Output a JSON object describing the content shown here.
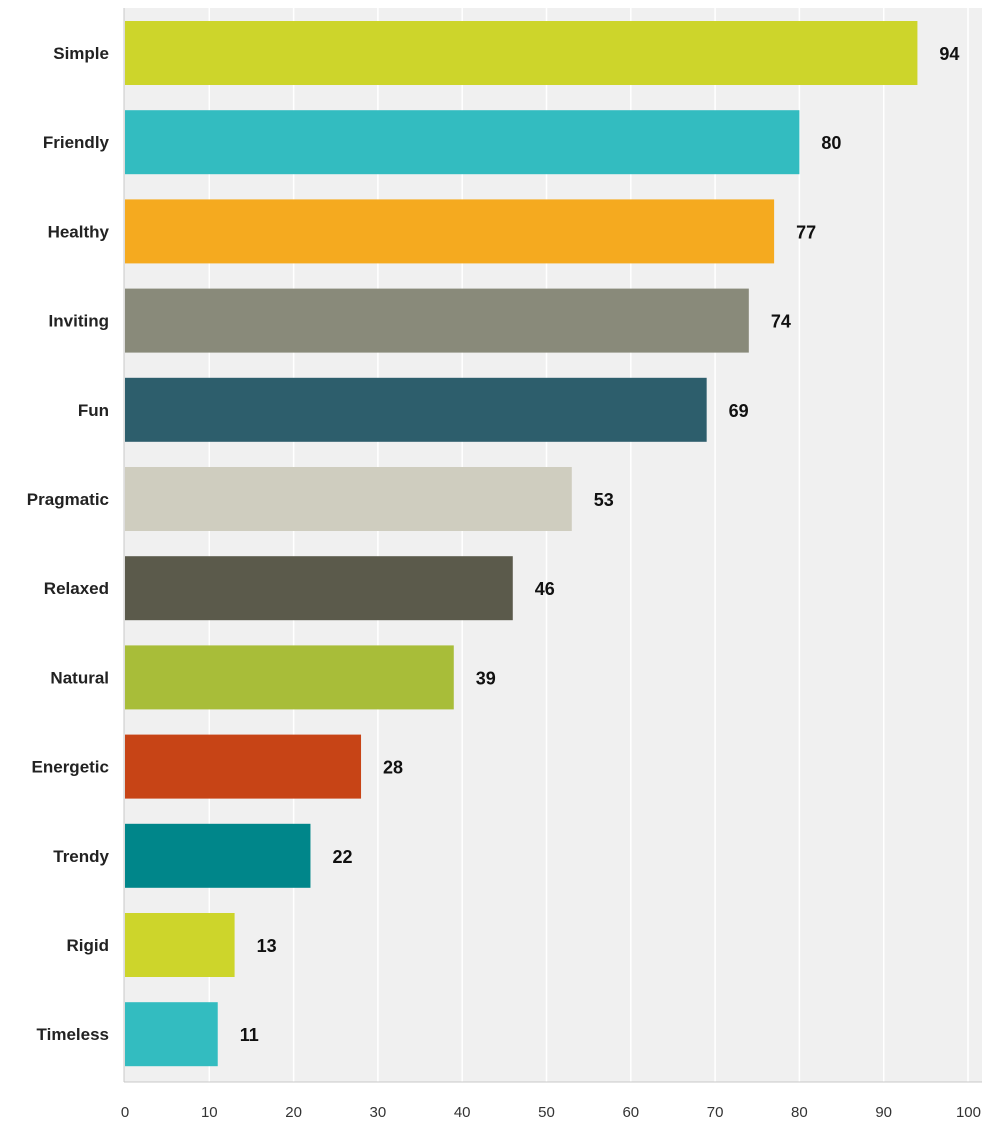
{
  "chart_data": {
    "type": "bar",
    "orientation": "horizontal",
    "categories": [
      "Simple",
      "Friendly",
      "Healthy",
      "Inviting",
      "Fun",
      "Pragmatic",
      "Relaxed",
      "Natural",
      "Energetic",
      "Trendy",
      "Rigid",
      "Timeless"
    ],
    "values": [
      94,
      80,
      77,
      74,
      69,
      53,
      46,
      39,
      28,
      22,
      13,
      11
    ],
    "value_labels": [
      "94",
      "80",
      "77",
      "74",
      "69",
      "53",
      "46",
      "39",
      "28",
      "22",
      "13",
      "11"
    ],
    "colors": [
      "#cdd52b",
      "#33bcc0",
      "#f5aa1f",
      "#898a7a",
      "#2d5e6c",
      "#cfcdbf",
      "#5b5a4b",
      "#a8bd39",
      "#c74416",
      "#00868a",
      "#cdd52b",
      "#33bcc0"
    ],
    "title": "",
    "xlabel": "",
    "ylabel": "",
    "xlim": [
      0,
      100
    ],
    "xticks": [
      0,
      10,
      20,
      30,
      40,
      50,
      60,
      70,
      80,
      90,
      100
    ],
    "xtick_labels": [
      "0",
      "10",
      "20",
      "30",
      "40",
      "50",
      "60",
      "70",
      "80",
      "90",
      "100"
    ],
    "grid": true,
    "plot_background": "#f0f0f0",
    "legend": "none"
  }
}
